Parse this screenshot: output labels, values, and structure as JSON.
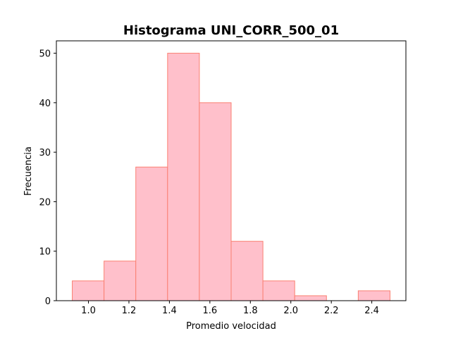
{
  "chart_data": {
    "type": "bar",
    "title": "Histograma UNI_CORR_500_01",
    "xlabel": "Promedio velocidad",
    "ylabel": "Frecuencia",
    "bins": [
      {
        "x0": 0.92,
        "x1": 1.077,
        "count": 4
      },
      {
        "x0": 1.077,
        "x1": 1.234,
        "count": 8
      },
      {
        "x0": 1.234,
        "x1": 1.391,
        "count": 27
      },
      {
        "x0": 1.391,
        "x1": 1.548,
        "count": 50
      },
      {
        "x0": 1.548,
        "x1": 1.705,
        "count": 40
      },
      {
        "x0": 1.705,
        "x1": 1.862,
        "count": 12
      },
      {
        "x0": 1.862,
        "x1": 2.019,
        "count": 4
      },
      {
        "x0": 2.019,
        "x1": 2.176,
        "count": 1
      },
      {
        "x0": 2.176,
        "x1": 2.333,
        "count": 0
      },
      {
        "x0": 2.333,
        "x1": 2.49,
        "count": 2
      }
    ],
    "xlim": [
      0.8415,
      2.5685
    ],
    "ylim": [
      0,
      52.5
    ],
    "xticks": [
      1.0,
      1.2,
      1.4,
      1.6,
      1.8,
      2.0,
      2.2,
      2.4
    ],
    "xtick_labels": [
      "1.0",
      "1.2",
      "1.4",
      "1.6",
      "1.8",
      "2.0",
      "2.2",
      "2.4"
    ],
    "yticks": [
      0,
      10,
      20,
      30,
      40,
      50
    ],
    "ytick_labels": [
      "0",
      "10",
      "20",
      "30",
      "40",
      "50"
    ],
    "bar_fill": "#ffc0cb",
    "bar_edge": "#fa8072",
    "grid": false,
    "legend": "none"
  }
}
